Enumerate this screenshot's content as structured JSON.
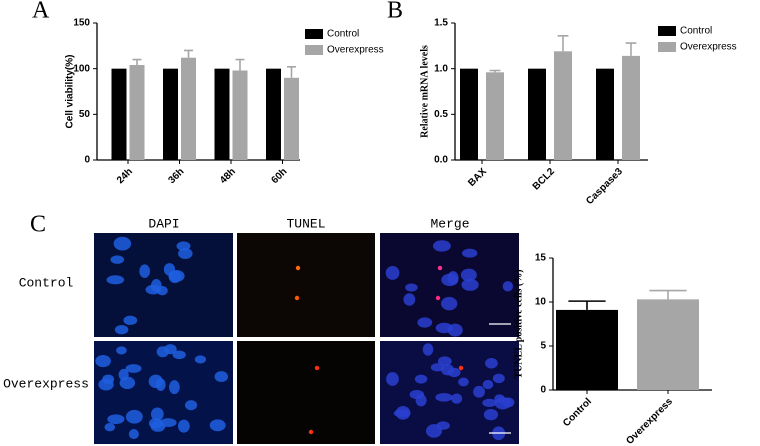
{
  "panels": {
    "labels": [
      "A",
      "B",
      "C"
    ]
  },
  "image_panel": {
    "columns": [
      "DAPI",
      "TUNEL",
      "Merge"
    ],
    "rows": [
      "Control",
      "Overexpress"
    ]
  },
  "chart_data": [
    {
      "type": "bar",
      "y_label": "Cell viability(%)",
      "categories": [
        "24h",
        "36h",
        "48h",
        "60h"
      ],
      "series": [
        {
          "name": "Control",
          "color": "#000000",
          "values": [
            100,
            100,
            100,
            100
          ]
        },
        {
          "name": "Overexpress",
          "color": "#a6a6a6",
          "values": [
            104,
            112,
            98,
            90
          ],
          "errors": [
            6,
            8,
            12,
            12
          ]
        }
      ],
      "ylim": [
        0,
        150
      ],
      "yticks": [
        0,
        50,
        100,
        150
      ],
      "legend": "upper right"
    },
    {
      "type": "bar",
      "y_label": "Relative mRNA levels",
      "categories": [
        "BAX",
        "BCL2",
        "Caspase3"
      ],
      "series": [
        {
          "name": "Control",
          "color": "#000000",
          "values": [
            1,
            1,
            1
          ]
        },
        {
          "name": "Overexpress",
          "color": "#a6a6a6",
          "values": [
            0.96,
            1.19,
            1.14
          ],
          "errors": [
            0.02,
            0.17,
            0.14
          ]
        }
      ],
      "ylim": [
        0,
        1.5
      ],
      "yticks": [
        {
          "value": 0,
          "label": "0.0"
        },
        {
          "value": 0.5,
          "label": "0.5"
        },
        {
          "value": 1,
          "label": "1.0"
        },
        {
          "value": 1.5,
          "label": "1.5"
        }
      ],
      "legend": "upper right"
    },
    {
      "type": "bar",
      "y_label": "TUNEL positive cells (%)",
      "categories": [
        "Control",
        "Overexpress"
      ],
      "values": [
        9.1,
        10.3
      ],
      "errors": [
        1.0,
        1.0
      ],
      "colors": [
        "#000000",
        "#a6a6a6"
      ],
      "ylim": [
        0,
        15
      ],
      "yticks": [
        0,
        5,
        10,
        15
      ]
    }
  ]
}
